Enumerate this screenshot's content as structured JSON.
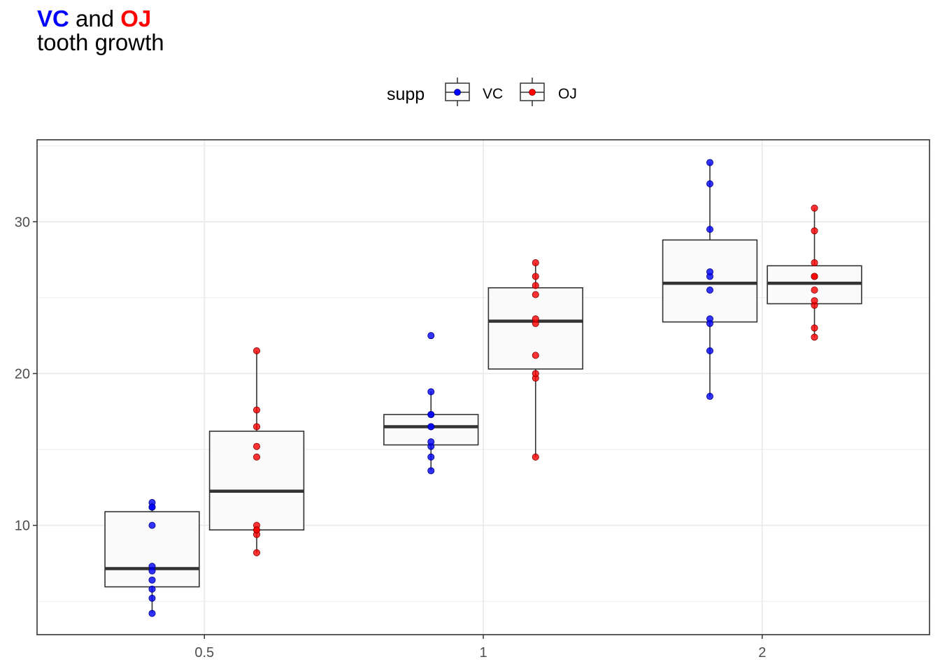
{
  "title": {
    "part1": "VC",
    "part2": " and ",
    "part3": "OJ",
    "subtitle": "tooth growth"
  },
  "legend": {
    "title": "supp",
    "position": "top",
    "items": [
      {
        "label": "VC",
        "color": "#0000ff"
      },
      {
        "label": "OJ",
        "color": "#ff0000"
      }
    ]
  },
  "colors": {
    "VC": "#0000ff",
    "OJ": "#ff0000",
    "box_fill": "#fafafa",
    "box_line": "#333333",
    "grid": "#ebebeb"
  },
  "chart_data": {
    "type": "boxplot",
    "categories": [
      "0.5",
      "1",
      "2"
    ],
    "x_tick_labels": [
      "0.5",
      "1",
      "2"
    ],
    "y_tick_labels": [
      "10",
      "20",
      "30"
    ],
    "y_ticks": [
      10,
      20,
      30
    ],
    "ylim": [
      2.8,
      35.4
    ],
    "grid": true,
    "xlabel": "",
    "ylabel": "",
    "series": [
      {
        "name": "VC",
        "color": "#0000ff",
        "boxes": [
          {
            "category": "0.5",
            "q1": 5.95,
            "median": 7.15,
            "q3": 10.9,
            "whisker_low": 4.2,
            "whisker_high": 11.5,
            "points": [
              4.2,
              11.5,
              7.3,
              5.8,
              6.4,
              10.0,
              11.2,
              11.2,
              5.2,
              7.0
            ]
          },
          {
            "category": "1",
            "q1": 15.3,
            "median": 16.5,
            "q3": 17.3,
            "whisker_low": 13.6,
            "whisker_high": 18.8,
            "points": [
              16.5,
              16.5,
              15.2,
              17.3,
              22.5,
              17.3,
              13.6,
              14.5,
              18.8,
              15.5
            ]
          },
          {
            "category": "2",
            "q1": 23.4,
            "median": 25.95,
            "q3": 28.8,
            "whisker_low": 18.5,
            "whisker_high": 33.9,
            "points": [
              23.6,
              18.5,
              33.9,
              25.5,
              26.4,
              32.5,
              26.7,
              21.5,
              23.3,
              29.5
            ]
          }
        ]
      },
      {
        "name": "OJ",
        "color": "#ff0000",
        "boxes": [
          {
            "category": "0.5",
            "q1": 9.7,
            "median": 12.25,
            "q3": 16.2,
            "whisker_low": 8.2,
            "whisker_high": 21.5,
            "points": [
              15.2,
              21.5,
              17.6,
              9.7,
              14.5,
              10.0,
              8.2,
              9.4,
              16.5,
              9.7
            ]
          },
          {
            "category": "1",
            "q1": 20.3,
            "median": 23.45,
            "q3": 25.65,
            "whisker_low": 14.5,
            "whisker_high": 27.3,
            "points": [
              19.7,
              23.3,
              23.6,
              26.4,
              20.0,
              25.2,
              25.8,
              21.2,
              14.5,
              27.3
            ]
          },
          {
            "category": "2",
            "q1": 24.6,
            "median": 25.95,
            "q3": 27.1,
            "whisker_low": 22.4,
            "whisker_high": 30.9,
            "points": [
              25.5,
              26.4,
              22.4,
              24.5,
              24.8,
              30.9,
              26.4,
              27.3,
              29.4,
              23.0
            ]
          }
        ]
      }
    ]
  }
}
